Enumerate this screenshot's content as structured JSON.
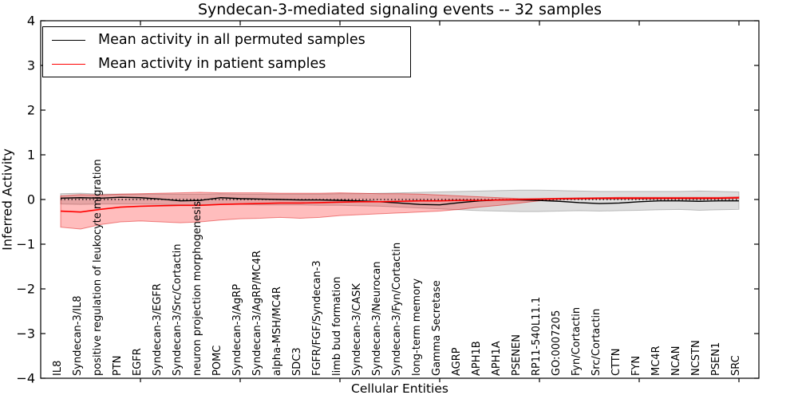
{
  "title": "Syndecan-3-mediated signaling events -- 32 samples",
  "legend": {
    "items": [
      {
        "label": "Mean activity in all permuted samples",
        "color": "#000000"
      },
      {
        "label": "Mean activity in patient samples",
        "color": "#ff0000"
      }
    ]
  },
  "chart_data": {
    "type": "line",
    "title": "Syndecan-3-mediated signaling events -- 32 samples",
    "xlabel": "Cellular Entities",
    "ylabel": "Inferred Activity",
    "ylim": [
      -4,
      4
    ],
    "yticks": [
      4,
      3,
      2,
      1,
      0,
      -1,
      -2,
      -3,
      -4
    ],
    "xtick_indices": [
      4,
      9,
      14,
      19,
      24,
      29,
      34
    ],
    "grid": false,
    "legend_position": "upper left",
    "zero_line": {
      "value": 0,
      "style": "dotted",
      "color": "#000000"
    },
    "categories": [
      "IL8",
      "Syndecan-3/IL8",
      "positive regulation of leukocyte migration",
      "PTN",
      "EGFR",
      "Syndecan-3/EGFR",
      "Syndecan-3/Src/Cortactin",
      "neuron projection morphogenesis",
      "POMC",
      "Syndecan-3/AgRP",
      "Syndecan-3/AgRP/MC4R",
      "alpha-MSH/MC4R",
      "SDC3",
      "FGFR/FGF/Syndecan-3",
      "limb bud formation",
      "Syndecan-3/CASK",
      "Syndecan-3/Neurocan",
      "Syndecan-3/Fyn/Cortactin",
      "long-term memory",
      "Gamma Secretase",
      "AGRP",
      "APH1B",
      "APH1A",
      "PSENEN",
      "RP11-540L11.1",
      "GO:0007205",
      "Fyn/Cortactin",
      "Src/Cortactin",
      "CTTN",
      "FYN",
      "MC4R",
      "NCAN",
      "NCSTN",
      "PSEN1",
      "SRC"
    ],
    "series": [
      {
        "name": "Mean activity in all permuted samples",
        "color": "#000000",
        "line_width": 1.4,
        "band_fill": "rgba(0,0,0,0.13)",
        "band_edge": "rgba(0,0,0,0.22)",
        "values": [
          0.03,
          0.04,
          0.03,
          0.05,
          0.04,
          0.01,
          -0.03,
          -0.02,
          0.04,
          0.02,
          0.01,
          0.0,
          -0.01,
          -0.01,
          -0.02,
          -0.03,
          -0.05,
          -0.08,
          -0.11,
          -0.12,
          -0.07,
          -0.03,
          -0.01,
          -0.01,
          -0.02,
          -0.04,
          -0.07,
          -0.09,
          -0.08,
          -0.05,
          -0.03,
          -0.03,
          -0.04,
          -0.03,
          -0.03
        ],
        "band_lower": [
          -0.1,
          -0.11,
          -0.1,
          -0.1,
          -0.1,
          -0.11,
          -0.12,
          -0.12,
          -0.11,
          -0.11,
          -0.12,
          -0.12,
          -0.12,
          -0.13,
          -0.13,
          -0.14,
          -0.15,
          -0.17,
          -0.19,
          -0.21,
          -0.23,
          -0.25,
          -0.26,
          -0.27,
          -0.27,
          -0.26,
          -0.25,
          -0.26,
          -0.25,
          -0.24,
          -0.23,
          -0.22,
          -0.24,
          -0.23,
          -0.22
        ],
        "band_upper": [
          0.13,
          0.14,
          0.12,
          0.12,
          0.12,
          0.12,
          0.12,
          0.12,
          0.13,
          0.12,
          0.12,
          0.12,
          0.12,
          0.12,
          0.13,
          0.13,
          0.14,
          0.15,
          0.16,
          0.17,
          0.18,
          0.19,
          0.2,
          0.21,
          0.21,
          0.2,
          0.19,
          0.18,
          0.18,
          0.18,
          0.18,
          0.18,
          0.19,
          0.18,
          0.17
        ]
      },
      {
        "name": "Mean activity in patient samples",
        "color": "#ff0000",
        "line_width": 1.6,
        "band_fill": "rgba(255,0,0,0.26)",
        "band_edge": "rgba(220,0,0,0.45)",
        "values": [
          -0.26,
          -0.28,
          -0.22,
          -0.17,
          -0.15,
          -0.14,
          -0.13,
          -0.13,
          -0.11,
          -0.1,
          -0.09,
          -0.08,
          -0.08,
          -0.07,
          -0.06,
          -0.05,
          -0.05,
          -0.04,
          -0.03,
          -0.03,
          -0.02,
          -0.02,
          -0.01,
          0.0,
          0.01,
          0.02,
          0.02,
          0.03,
          0.03,
          0.03,
          0.03,
          0.03,
          0.03,
          0.03,
          0.04
        ],
        "band_lower": [
          -0.62,
          -0.66,
          -0.56,
          -0.5,
          -0.48,
          -0.5,
          -0.52,
          -0.5,
          -0.46,
          -0.43,
          -0.42,
          -0.4,
          -0.42,
          -0.4,
          -0.36,
          -0.34,
          -0.32,
          -0.3,
          -0.28,
          -0.26,
          -0.22,
          -0.17,
          -0.13,
          -0.08,
          -0.03,
          0.0,
          0.01,
          0.01,
          0.01,
          0.01,
          0.01,
          0.01,
          0.01,
          0.01,
          0.02
        ],
        "band_upper": [
          0.08,
          0.11,
          0.1,
          0.12,
          0.13,
          0.14,
          0.15,
          0.16,
          0.15,
          0.15,
          0.15,
          0.14,
          0.14,
          0.14,
          0.15,
          0.14,
          0.13,
          0.13,
          0.12,
          0.1,
          0.08,
          0.06,
          0.04,
          0.02,
          0.02,
          0.03,
          0.04,
          0.04,
          0.05,
          0.05,
          0.05,
          0.05,
          0.05,
          0.05,
          0.06
        ]
      }
    ]
  }
}
